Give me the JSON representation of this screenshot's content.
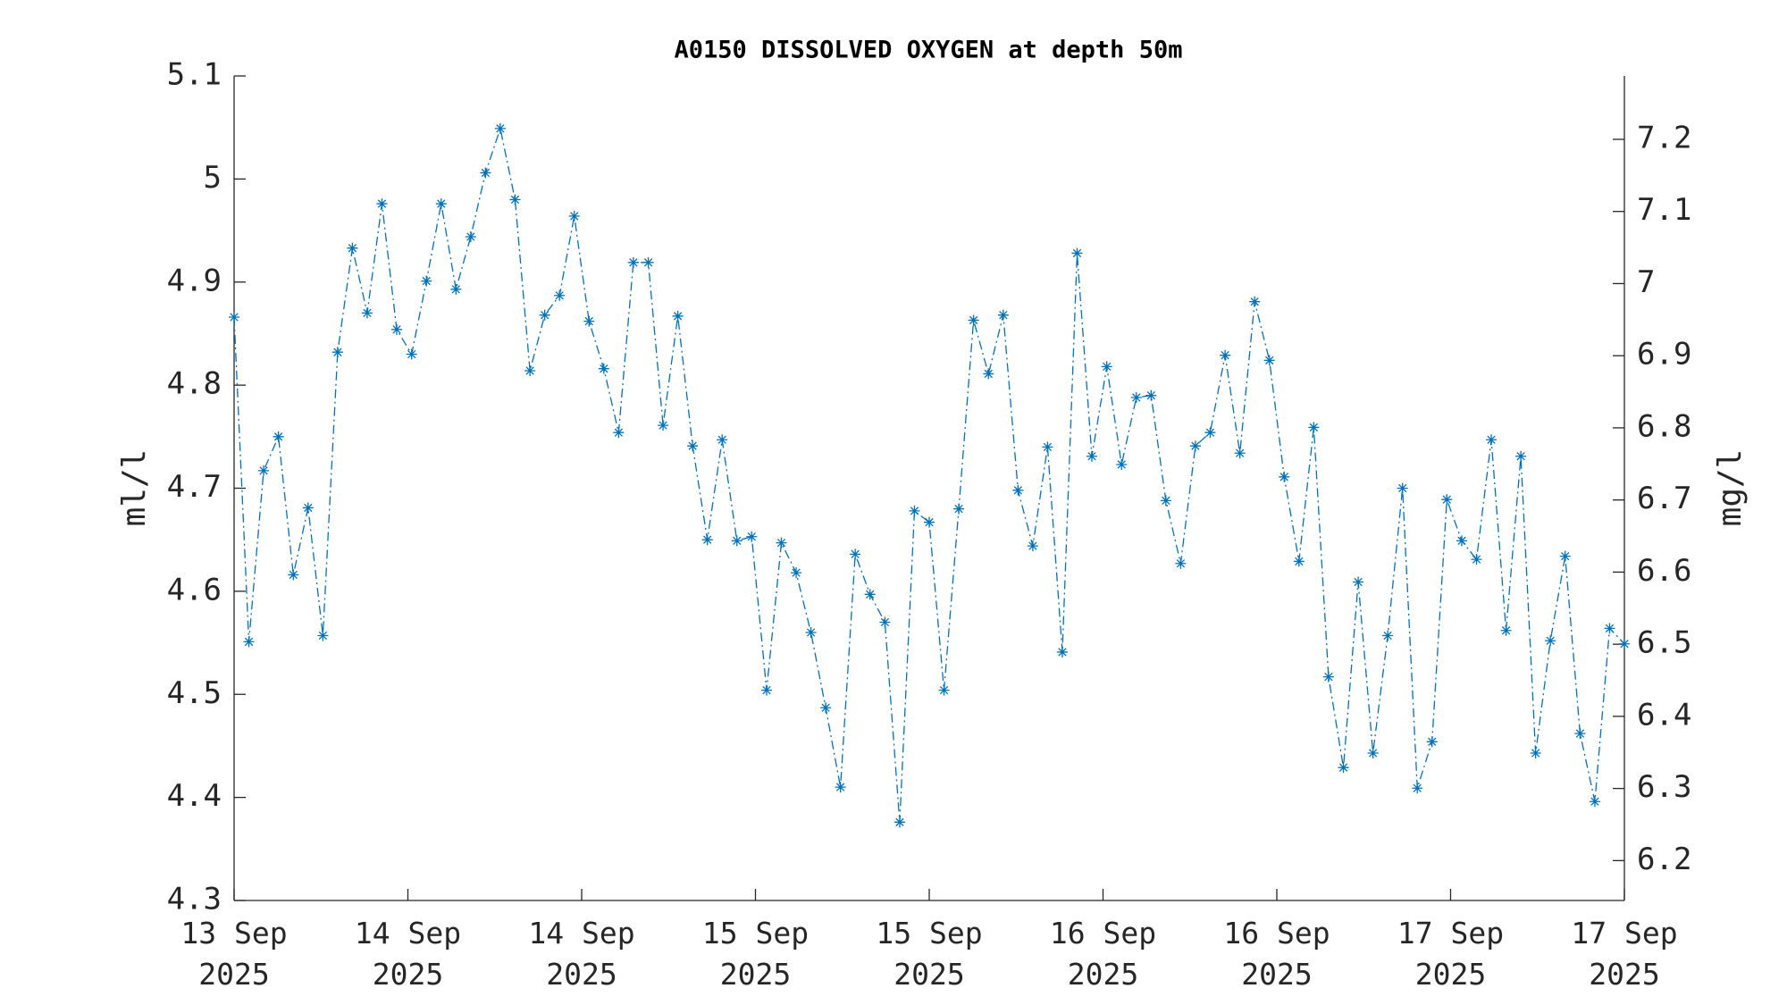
{
  "chart_data": {
    "type": "line",
    "title": "A0150 DISSOLVED OXYGEN at depth 50m",
    "y_label": "ml/l",
    "y2_label": "mg/l",
    "x": [
      0,
      1.02,
      2.04,
      3.06,
      4.09,
      5.11,
      6.13,
      7.15,
      8.17,
      9.19,
      10.21,
      11.23,
      12.26,
      13.28,
      14.3,
      15.32,
      16.34,
      17.36,
      18.38,
      19.4,
      20.43,
      21.45,
      22.47,
      23.49,
      24.51,
      25.53,
      26.55,
      27.57,
      28.6,
      29.62,
      30.64,
      31.66,
      32.68,
      33.7,
      34.72,
      35.74,
      36.77,
      37.79,
      38.81,
      39.83,
      40.85,
      41.87,
      42.89,
      43.91,
      44.94,
      45.96,
      46.98,
      48,
      49.02,
      50.04,
      51.06,
      52.09,
      53.11,
      54.13,
      55.15,
      56.17,
      57.19,
      58.21,
      59.23,
      60.26,
      61.28,
      62.3,
      63.32,
      64.34,
      65.36,
      66.38,
      67.4,
      68.43,
      69.45,
      70.47,
      71.49,
      72.51,
      73.53,
      74.55,
      75.57,
      76.6,
      77.62,
      78.64,
      79.66,
      80.68,
      81.7,
      82.72,
      83.74,
      84.77,
      85.79,
      86.81,
      87.83,
      88.85,
      89.87,
      90.89,
      91.91,
      92.94,
      93.96,
      94.98,
      96
    ],
    "series": [
      {
        "color": "#0072bd",
        "values": [
          4.866,
          4.551,
          4.717,
          4.75,
          4.616,
          4.681,
          4.557,
          4.832,
          4.933,
          4.87,
          4.976,
          4.854,
          4.83,
          4.901,
          4.976,
          4.893,
          4.944,
          5.006,
          5.049,
          4.98,
          4.814,
          4.868,
          4.887,
          4.964,
          4.862,
          4.816,
          4.754,
          4.919,
          4.919,
          4.761,
          4.867,
          4.741,
          4.65,
          4.747,
          4.649,
          4.653,
          4.504,
          4.647,
          4.618,
          4.56,
          4.487,
          4.41,
          4.636,
          4.597,
          4.57,
          4.376,
          4.678,
          4.667,
          4.504,
          4.68,
          4.863,
          4.811,
          4.868,
          4.698,
          4.644,
          4.74,
          4.541,
          4.928,
          4.731,
          4.818,
          4.723,
          4.788,
          4.79,
          4.688,
          4.627,
          4.741,
          4.754,
          4.829,
          4.734,
          4.881,
          4.824,
          4.711,
          4.629,
          4.759,
          4.517,
          4.429,
          4.609,
          4.443,
          4.557,
          4.7,
          4.409,
          4.454,
          4.689,
          4.649,
          4.631,
          4.747,
          4.562,
          4.731,
          4.443,
          4.552,
          4.634,
          4.462,
          4.396,
          4.564,
          4.549
        ]
      }
    ],
    "xlim": [
      0,
      96
    ],
    "xticks": [
      {
        "value": 0,
        "label": "13 Sep\n2025"
      },
      {
        "value": 12,
        "label": "14 Sep\n2025"
      },
      {
        "value": 24,
        "label": "14 Sep\n2025"
      },
      {
        "value": 36,
        "label": "15 Sep\n2025"
      },
      {
        "value": 48,
        "label": "15 Sep\n2025"
      },
      {
        "value": 60,
        "label": "16 Sep\n2025"
      },
      {
        "value": 72,
        "label": "16 Sep\n2025"
      },
      {
        "value": 84,
        "label": "17 Sep\n2025"
      },
      {
        "value": 96,
        "label": "17 Sep\n2025"
      }
    ],
    "ylim": [
      4.3,
      5.1
    ],
    "yticks": [
      4.3,
      4.4,
      4.5,
      4.6,
      4.7,
      4.8,
      4.9,
      5,
      5.1
    ],
    "y2lim": [
      6.1447,
      7.2879
    ],
    "y2ticks": [
      6.2,
      6.3,
      6.4,
      6.5,
      6.6,
      6.7,
      6.8,
      6.9,
      7,
      7.1,
      7.2
    ]
  }
}
